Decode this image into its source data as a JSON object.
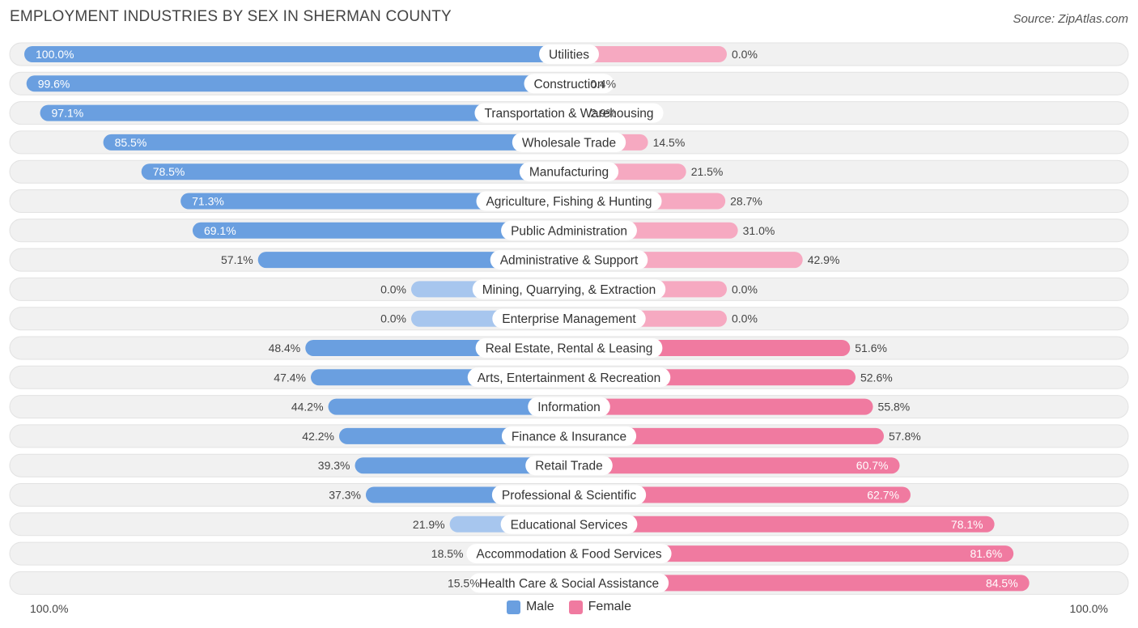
{
  "title": "EMPLOYMENT INDUSTRIES BY SEX IN SHERMAN COUNTY",
  "source": "Source: ZipAtlas.com",
  "colors": {
    "male": "#6a9fe0",
    "male_light": "#a7c6ee",
    "female": "#f07aa0",
    "female_light": "#f6a9c1",
    "row_bg": "#f1f1f1"
  },
  "chart_data": {
    "type": "bar",
    "orientation": "horizontal-diverging",
    "title": "EMPLOYMENT INDUSTRIES BY SEX IN SHERMAN COUNTY",
    "axis_left_label": "100.0%",
    "axis_right_label": "100.0%",
    "legend": [
      "Male",
      "Female"
    ],
    "categories": [
      "Utilities",
      "Construction",
      "Transportation & Warehousing",
      "Wholesale Trade",
      "Manufacturing",
      "Agriculture, Fishing & Hunting",
      "Public Administration",
      "Administrative & Support",
      "Mining, Quarrying, & Extraction",
      "Enterprise Management",
      "Real Estate, Rental & Leasing",
      "Arts, Entertainment & Recreation",
      "Information",
      "Finance & Insurance",
      "Retail Trade",
      "Professional & Scientific",
      "Educational Services",
      "Accommodation & Food Services",
      "Health Care & Social Assistance"
    ],
    "series": [
      {
        "name": "Male",
        "values": [
          100.0,
          99.6,
          97.1,
          85.5,
          78.5,
          71.3,
          69.1,
          57.1,
          0.0,
          0.0,
          48.4,
          47.4,
          44.2,
          42.2,
          39.3,
          37.3,
          21.9,
          18.5,
          15.5
        ],
        "labels": [
          "100.0%",
          "99.6%",
          "97.1%",
          "85.5%",
          "78.5%",
          "71.3%",
          "69.1%",
          "57.1%",
          "0.0%",
          "0.0%",
          "48.4%",
          "47.4%",
          "44.2%",
          "42.2%",
          "39.3%",
          "37.3%",
          "21.9%",
          "18.5%",
          "15.5%"
        ]
      },
      {
        "name": "Female",
        "values": [
          0.0,
          0.4,
          2.9,
          14.5,
          21.5,
          28.7,
          31.0,
          42.9,
          0.0,
          0.0,
          51.6,
          52.6,
          55.8,
          57.8,
          60.7,
          62.7,
          78.1,
          81.6,
          84.5
        ],
        "labels": [
          "0.0%",
          "0.4%",
          "2.9%",
          "14.5%",
          "21.5%",
          "28.7%",
          "31.0%",
          "42.9%",
          "0.0%",
          "0.0%",
          "51.6%",
          "52.6%",
          "55.8%",
          "57.8%",
          "60.7%",
          "62.7%",
          "78.1%",
          "81.6%",
          "84.5%"
        ]
      }
    ],
    "xlim": [
      -100,
      100
    ]
  }
}
